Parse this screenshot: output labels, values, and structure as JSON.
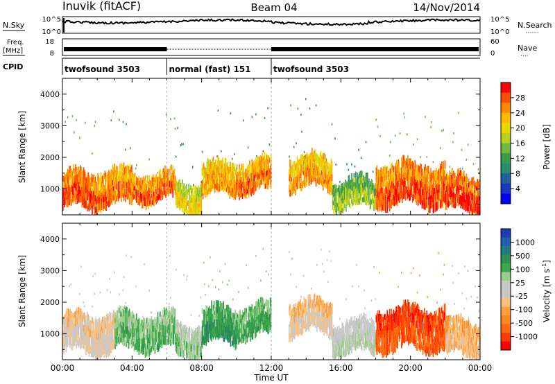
{
  "header": {
    "station": "Inuvik (fitACF)",
    "beam": "Beam 04",
    "date": "14/Nov/2014"
  },
  "strip_labels": {
    "nsky": "N.Sky",
    "nsearch": "N.Search",
    "nsearch_dots": "·······",
    "freq": "Freq.",
    "freq_unit": "[MHz]",
    "nave": "Nave",
    "nave_dots": "····",
    "cpid": "CPID",
    "noise_ticks_left": [
      "10^5",
      "10^0"
    ],
    "noise_ticks_right": [
      "10^5",
      "10^0"
    ],
    "freq_ticks": [
      "18",
      "8"
    ],
    "nave_ticks": [
      "60",
      "0"
    ]
  },
  "cpid_segments": [
    {
      "label": "twofsound 3503",
      "start_h": 0,
      "end_h": 6
    },
    {
      "label": "normal (fast) 151",
      "start_h": 6,
      "end_h": 12
    },
    {
      "label": "twofsound 3503",
      "start_h": 12,
      "end_h": 24
    }
  ],
  "axes": {
    "ylabel": "Slant Range [km]",
    "xlabel": "Time UT",
    "yticks": [
      "1000",
      "2000",
      "3000",
      "4000"
    ],
    "xticks": [
      "00:00",
      "04:00",
      "08:00",
      "12:00",
      "16:00",
      "20:00",
      "00:00"
    ]
  },
  "colorbars": {
    "power": {
      "label": "Power [dB]",
      "ticks": [
        "28",
        "24",
        "20",
        "16",
        "12",
        "8",
        "4"
      ],
      "colors": [
        "#ff0000",
        "#ff4d00",
        "#ff8800",
        "#ffbb00",
        "#e8d800",
        "#b8d020",
        "#70b840",
        "#3a9a4a",
        "#2a8a6a",
        "#1e5fa0",
        "#1838c0",
        "#0000ff"
      ]
    },
    "velocity": {
      "label": "Velocity [m s",
      "label_sup": "-1",
      "label_end": "]",
      "ticks": [
        "1000",
        "500",
        "100",
        "25",
        "-25",
        "-100",
        "-500",
        "-1000"
      ],
      "colors": [
        "#1e3cb4",
        "#1f5fb0",
        "#207a80",
        "#2e8f4e",
        "#3aa84a",
        "#9ccc8a",
        "#c8c8c8",
        "#c8c8c8",
        "#ffc07a",
        "#ffa040",
        "#ff8820",
        "#ff6a10",
        "#ff3c00",
        "#ff0000"
      ]
    }
  },
  "chart_data": [
    {
      "type": "heatmap",
      "title": "Power [dB]",
      "xlabel": "Time UT",
      "ylabel": "Slant Range [km]",
      "xlim_hours": [
        0,
        24
      ],
      "ylim_km": [
        180,
        4500
      ],
      "color_range": [
        0,
        30
      ],
      "bands": [
        {
          "h0": 0.0,
          "h1": 2.0,
          "r0": 400,
          "r1": 1500,
          "value": 26
        },
        {
          "h0": 2.0,
          "h1": 4.0,
          "r0": 500,
          "r1": 1600,
          "value": 24
        },
        {
          "h0": 4.0,
          "h1": 6.5,
          "r0": 600,
          "r1": 1500,
          "value": 25
        },
        {
          "h0": 6.5,
          "h1": 8.0,
          "r0": 300,
          "r1": 1200,
          "value": 18
        },
        {
          "h0": 8.0,
          "h1": 10.0,
          "r0": 800,
          "r1": 1800,
          "value": 22
        },
        {
          "h0": 10.0,
          "h1": 12.0,
          "r0": 900,
          "r1": 1900,
          "value": 24
        },
        {
          "h0": 13.0,
          "h1": 15.5,
          "r0": 1000,
          "r1": 2000,
          "value": 22
        },
        {
          "h0": 15.5,
          "h1": 18.0,
          "r0": 400,
          "r1": 1300,
          "value": 14
        },
        {
          "h0": 18.0,
          "h1": 22.0,
          "r0": 500,
          "r1": 1800,
          "value": 26
        },
        {
          "h0": 22.0,
          "h1": 24.0,
          "r0": 300,
          "r1": 1400,
          "value": 27
        }
      ]
    },
    {
      "type": "heatmap",
      "title": "Velocity [m s-1]",
      "xlabel": "Time UT",
      "ylabel": "Slant Range [km]",
      "xlim_hours": [
        0,
        24
      ],
      "ylim_km": [
        180,
        4500
      ],
      "color_range": [
        -1000,
        1000
      ],
      "bands": [
        {
          "h0": 0.0,
          "h1": 3.0,
          "r0": 400,
          "r1": 1600,
          "value": -150
        },
        {
          "h0": 3.0,
          "h1": 6.5,
          "r0": 500,
          "r1": 1600,
          "value": 300
        },
        {
          "h0": 6.5,
          "h1": 8.0,
          "r0": 300,
          "r1": 1300,
          "value": 200
        },
        {
          "h0": 8.0,
          "h1": 10.0,
          "r0": 700,
          "r1": 1800,
          "value": 450
        },
        {
          "h0": 10.0,
          "h1": 12.0,
          "r0": 900,
          "r1": 1900,
          "value": 350
        },
        {
          "h0": 13.0,
          "h1": 15.5,
          "r0": 1000,
          "r1": 2000,
          "value": -200
        },
        {
          "h0": 15.5,
          "h1": 18.0,
          "r0": 400,
          "r1": 1400,
          "value": 80
        },
        {
          "h0": 18.0,
          "h1": 22.0,
          "r0": 500,
          "r1": 1800,
          "value": -800
        },
        {
          "h0": 22.0,
          "h1": 24.0,
          "r0": 300,
          "r1": 1400,
          "value": -300
        }
      ]
    }
  ]
}
